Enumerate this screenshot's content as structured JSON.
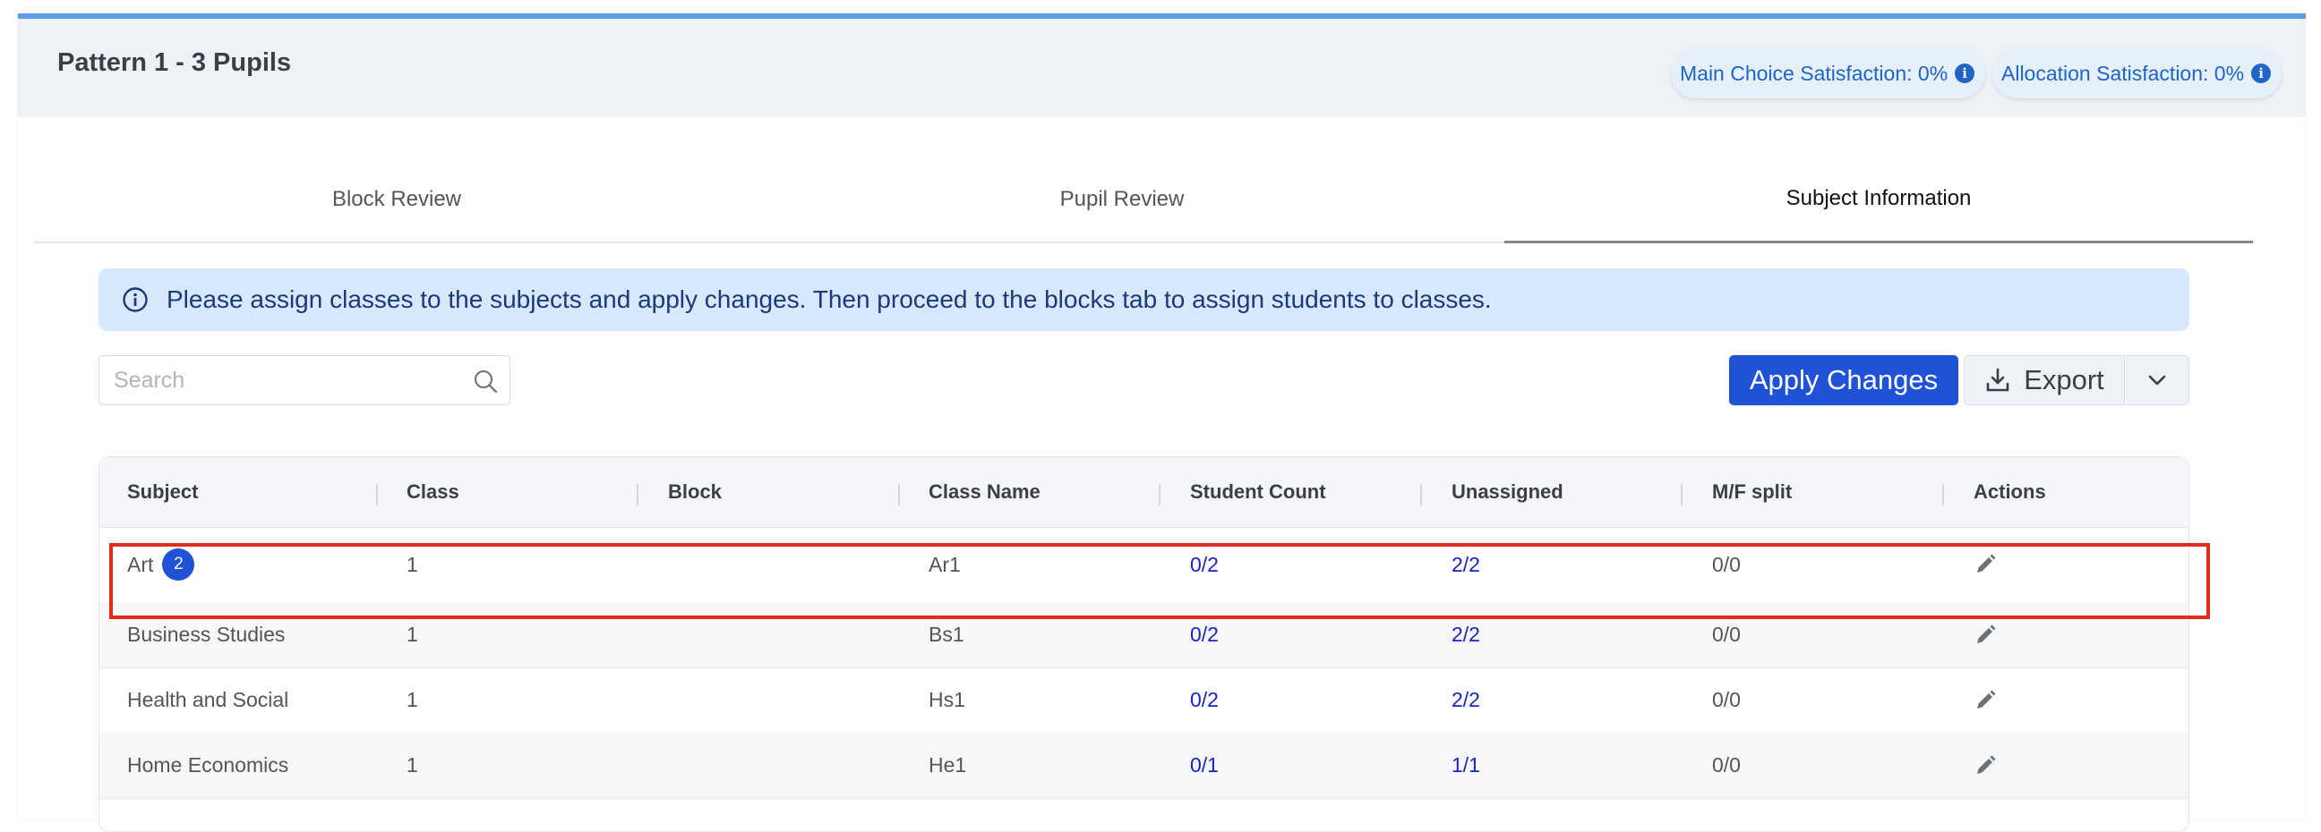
{
  "header": {
    "title": "Pattern 1 - 3 Pupils",
    "main_choice": "Main Choice Satisfaction: 0%",
    "allocation": "Allocation Satisfaction: 0%"
  },
  "tabs": [
    {
      "label": "Block Review"
    },
    {
      "label": "Pupil Review"
    },
    {
      "label": "Subject Information",
      "active": true
    }
  ],
  "alert": {
    "text": "Please assign classes to the subjects and apply changes. Then proceed to the blocks tab to assign students to classes."
  },
  "search": {
    "placeholder": "Search",
    "value": ""
  },
  "toolbar": {
    "apply_label": "Apply Changes",
    "export_label": "Export"
  },
  "table": {
    "columns": [
      "Subject",
      "Class",
      "Block",
      "Class Name",
      "Student Count",
      "Unassigned",
      "M/F split",
      "Actions"
    ],
    "rows": [
      {
        "subject": "Art",
        "badge": "2",
        "class": "1",
        "block": "",
        "class_name": "Ar1",
        "student_count": "0/2",
        "unassigned": "2/2",
        "mf_split": "0/0"
      },
      {
        "subject": "Business Studies",
        "badge": "",
        "class": "1",
        "block": "",
        "class_name": "Bs1",
        "student_count": "0/2",
        "unassigned": "2/2",
        "mf_split": "0/0"
      },
      {
        "subject": "Health and Social",
        "badge": "",
        "class": "1",
        "block": "",
        "class_name": "Hs1",
        "student_count": "0/2",
        "unassigned": "2/2",
        "mf_split": "0/0"
      },
      {
        "subject": "Home Economics",
        "badge": "",
        "class": "1",
        "block": "",
        "class_name": "He1",
        "student_count": "0/1",
        "unassigned": "1/1",
        "mf_split": "0/0"
      }
    ]
  },
  "colors": {
    "accent": "#1f52d6",
    "highlight": "#e32b1c",
    "link": "#1a24c4"
  },
  "icons": [
    "info-icon",
    "search-icon",
    "download-icon",
    "chevron-down-icon",
    "pencil-icon"
  ]
}
